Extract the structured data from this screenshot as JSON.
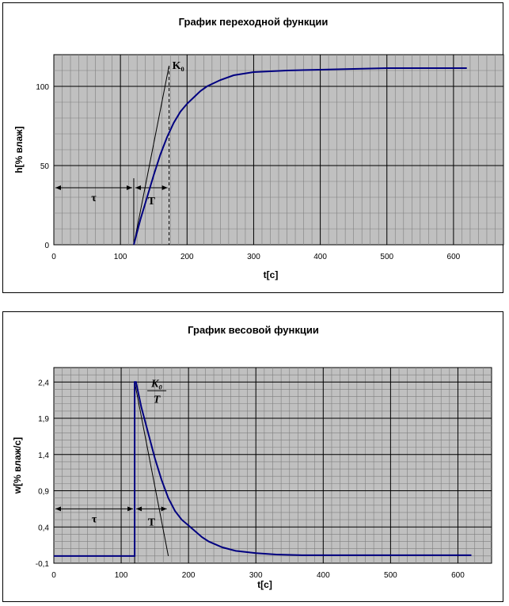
{
  "chart_data": [
    {
      "type": "line",
      "title": "График переходной функции",
      "xlabel": "t[c]",
      "ylabel": "h[% влаж]",
      "xlim": [
        0,
        675
      ],
      "ylim": [
        0,
        120
      ],
      "xticks": [
        0,
        100,
        200,
        300,
        400,
        500,
        600
      ],
      "xtick_labels": [
        "0",
        "100",
        "200",
        "300",
        "400",
        "500",
        "600"
      ],
      "yticks": [
        0,
        50,
        100
      ],
      "ytick_labels": [
        "0",
        "50",
        "100"
      ],
      "minor_x_step": 12.5,
      "minor_y_step": 10,
      "grid": true,
      "background": "#c0c0c0",
      "series": [
        {
          "color": "#000080",
          "x": [
            120,
            125,
            130,
            140,
            150,
            160,
            170,
            180,
            190,
            200,
            210,
            220,
            230,
            250,
            270,
            300,
            350,
            400,
            450,
            500,
            550,
            600,
            620
          ],
          "y": [
            0,
            8,
            16,
            30,
            44,
            57,
            68,
            77,
            84,
            89,
            93,
            97,
            100,
            104,
            107,
            109,
            110,
            110.5,
            111,
            111.5,
            111.5,
            111.5,
            111.5
          ]
        }
      ],
      "annotations": {
        "tau_label": "τ",
        "T_label": "T",
        "K_label": "K₀",
        "tau_range": [
          0,
          120
        ],
        "T_range": [
          120,
          173
        ],
        "arrow_y": 36,
        "tangent": {
          "x0": 120,
          "y0": 0,
          "x1": 173,
          "y1": 113
        },
        "dashed_x": 173
      }
    },
    {
      "type": "line",
      "title": "График весовой функции",
      "xlabel": "t[c]",
      "ylabel": "w[% влаж/c]",
      "xlim": [
        0,
        650
      ],
      "ylim": [
        -0.1,
        2.6
      ],
      "xticks": [
        0,
        100,
        200,
        300,
        400,
        500,
        600
      ],
      "xtick_labels": [
        "0",
        "100",
        "200",
        "300",
        "400",
        "500",
        "600"
      ],
      "yticks": [
        -0.1,
        0.4,
        0.9,
        1.4,
        1.9,
        2.4
      ],
      "ytick_labels": [
        "-0,1",
        "0,4",
        "0,9",
        "1,4",
        "1,9",
        "2,4"
      ],
      "minor_x_step": 12.5,
      "minor_y_step": 0.1,
      "grid": true,
      "background": "#c0c0c0",
      "series": [
        {
          "color": "#000080",
          "x": [
            0,
            120,
            120,
            122,
            130,
            140,
            150,
            160,
            170,
            180,
            190,
            200,
            210,
            220,
            230,
            250,
            270,
            300,
            330,
            370,
            400,
            500,
            620
          ],
          "y": [
            0,
            0,
            2.4,
            2.4,
            2.05,
            1.7,
            1.35,
            1.05,
            0.8,
            0.62,
            0.5,
            0.42,
            0.34,
            0.26,
            0.2,
            0.12,
            0.07,
            0.04,
            0.02,
            0.01,
            0.01,
            0.01,
            0.01
          ]
        }
      ],
      "annotations": {
        "tau_label": "τ",
        "T_label": "T",
        "K_numerator": "K₀",
        "K_denominator": "T",
        "tau_range": [
          0,
          120
        ],
        "T_range": [
          120,
          170
        ],
        "arrow_y": 0.65,
        "tangent": {
          "x0": 120,
          "y0": 2.4,
          "x1": 170,
          "y1": 0
        }
      }
    }
  ]
}
